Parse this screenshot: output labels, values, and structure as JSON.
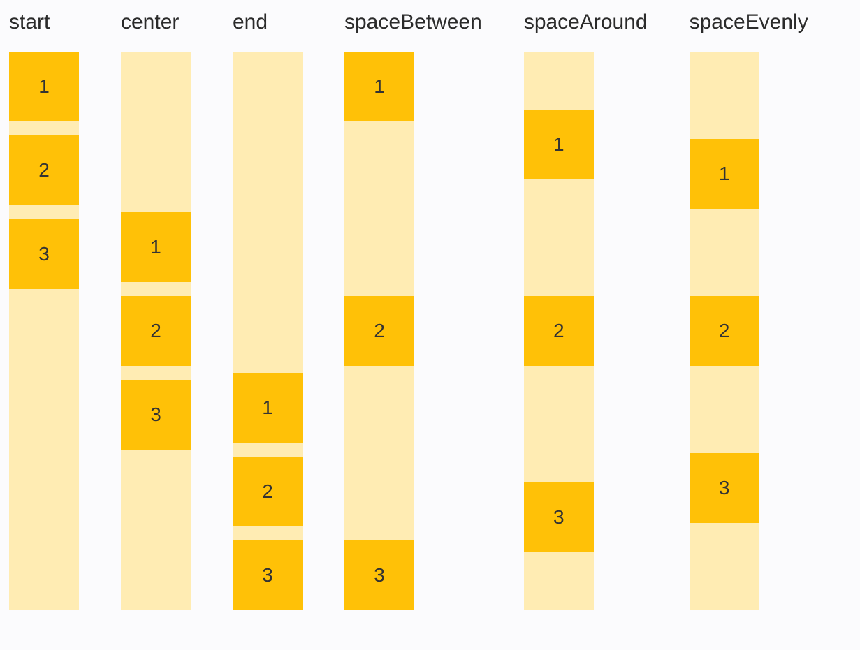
{
  "page": {
    "background": "#fbfbfd",
    "description_labels": [
      "start",
      "center",
      "end",
      "spaceBetween",
      "spaceAround",
      "spaceEvenly"
    ]
  },
  "colors": {
    "column_background": "#ffecb3",
    "item_background": "#ffc107",
    "label_text": "#2b2b2b",
    "item_text": "#333333"
  },
  "groups": [
    {
      "label": "start",
      "justify": "flex-start",
      "gapped": true,
      "items": [
        "1",
        "2",
        "3"
      ]
    },
    {
      "label": "center",
      "justify": "center",
      "gapped": true,
      "items": [
        "1",
        "2",
        "3"
      ]
    },
    {
      "label": "end",
      "justify": "flex-end",
      "gapped": true,
      "items": [
        "1",
        "2",
        "3"
      ]
    },
    {
      "label": "spaceBetween",
      "justify": "space-between",
      "gapped": false,
      "items": [
        "1",
        "2",
        "3"
      ]
    },
    {
      "label": "spaceAround",
      "justify": "space-around",
      "gapped": false,
      "items": [
        "1",
        "2",
        "3"
      ]
    },
    {
      "label": "spaceEvenly",
      "justify": "space-evenly",
      "gapped": false,
      "items": [
        "1",
        "2",
        "3"
      ]
    }
  ]
}
